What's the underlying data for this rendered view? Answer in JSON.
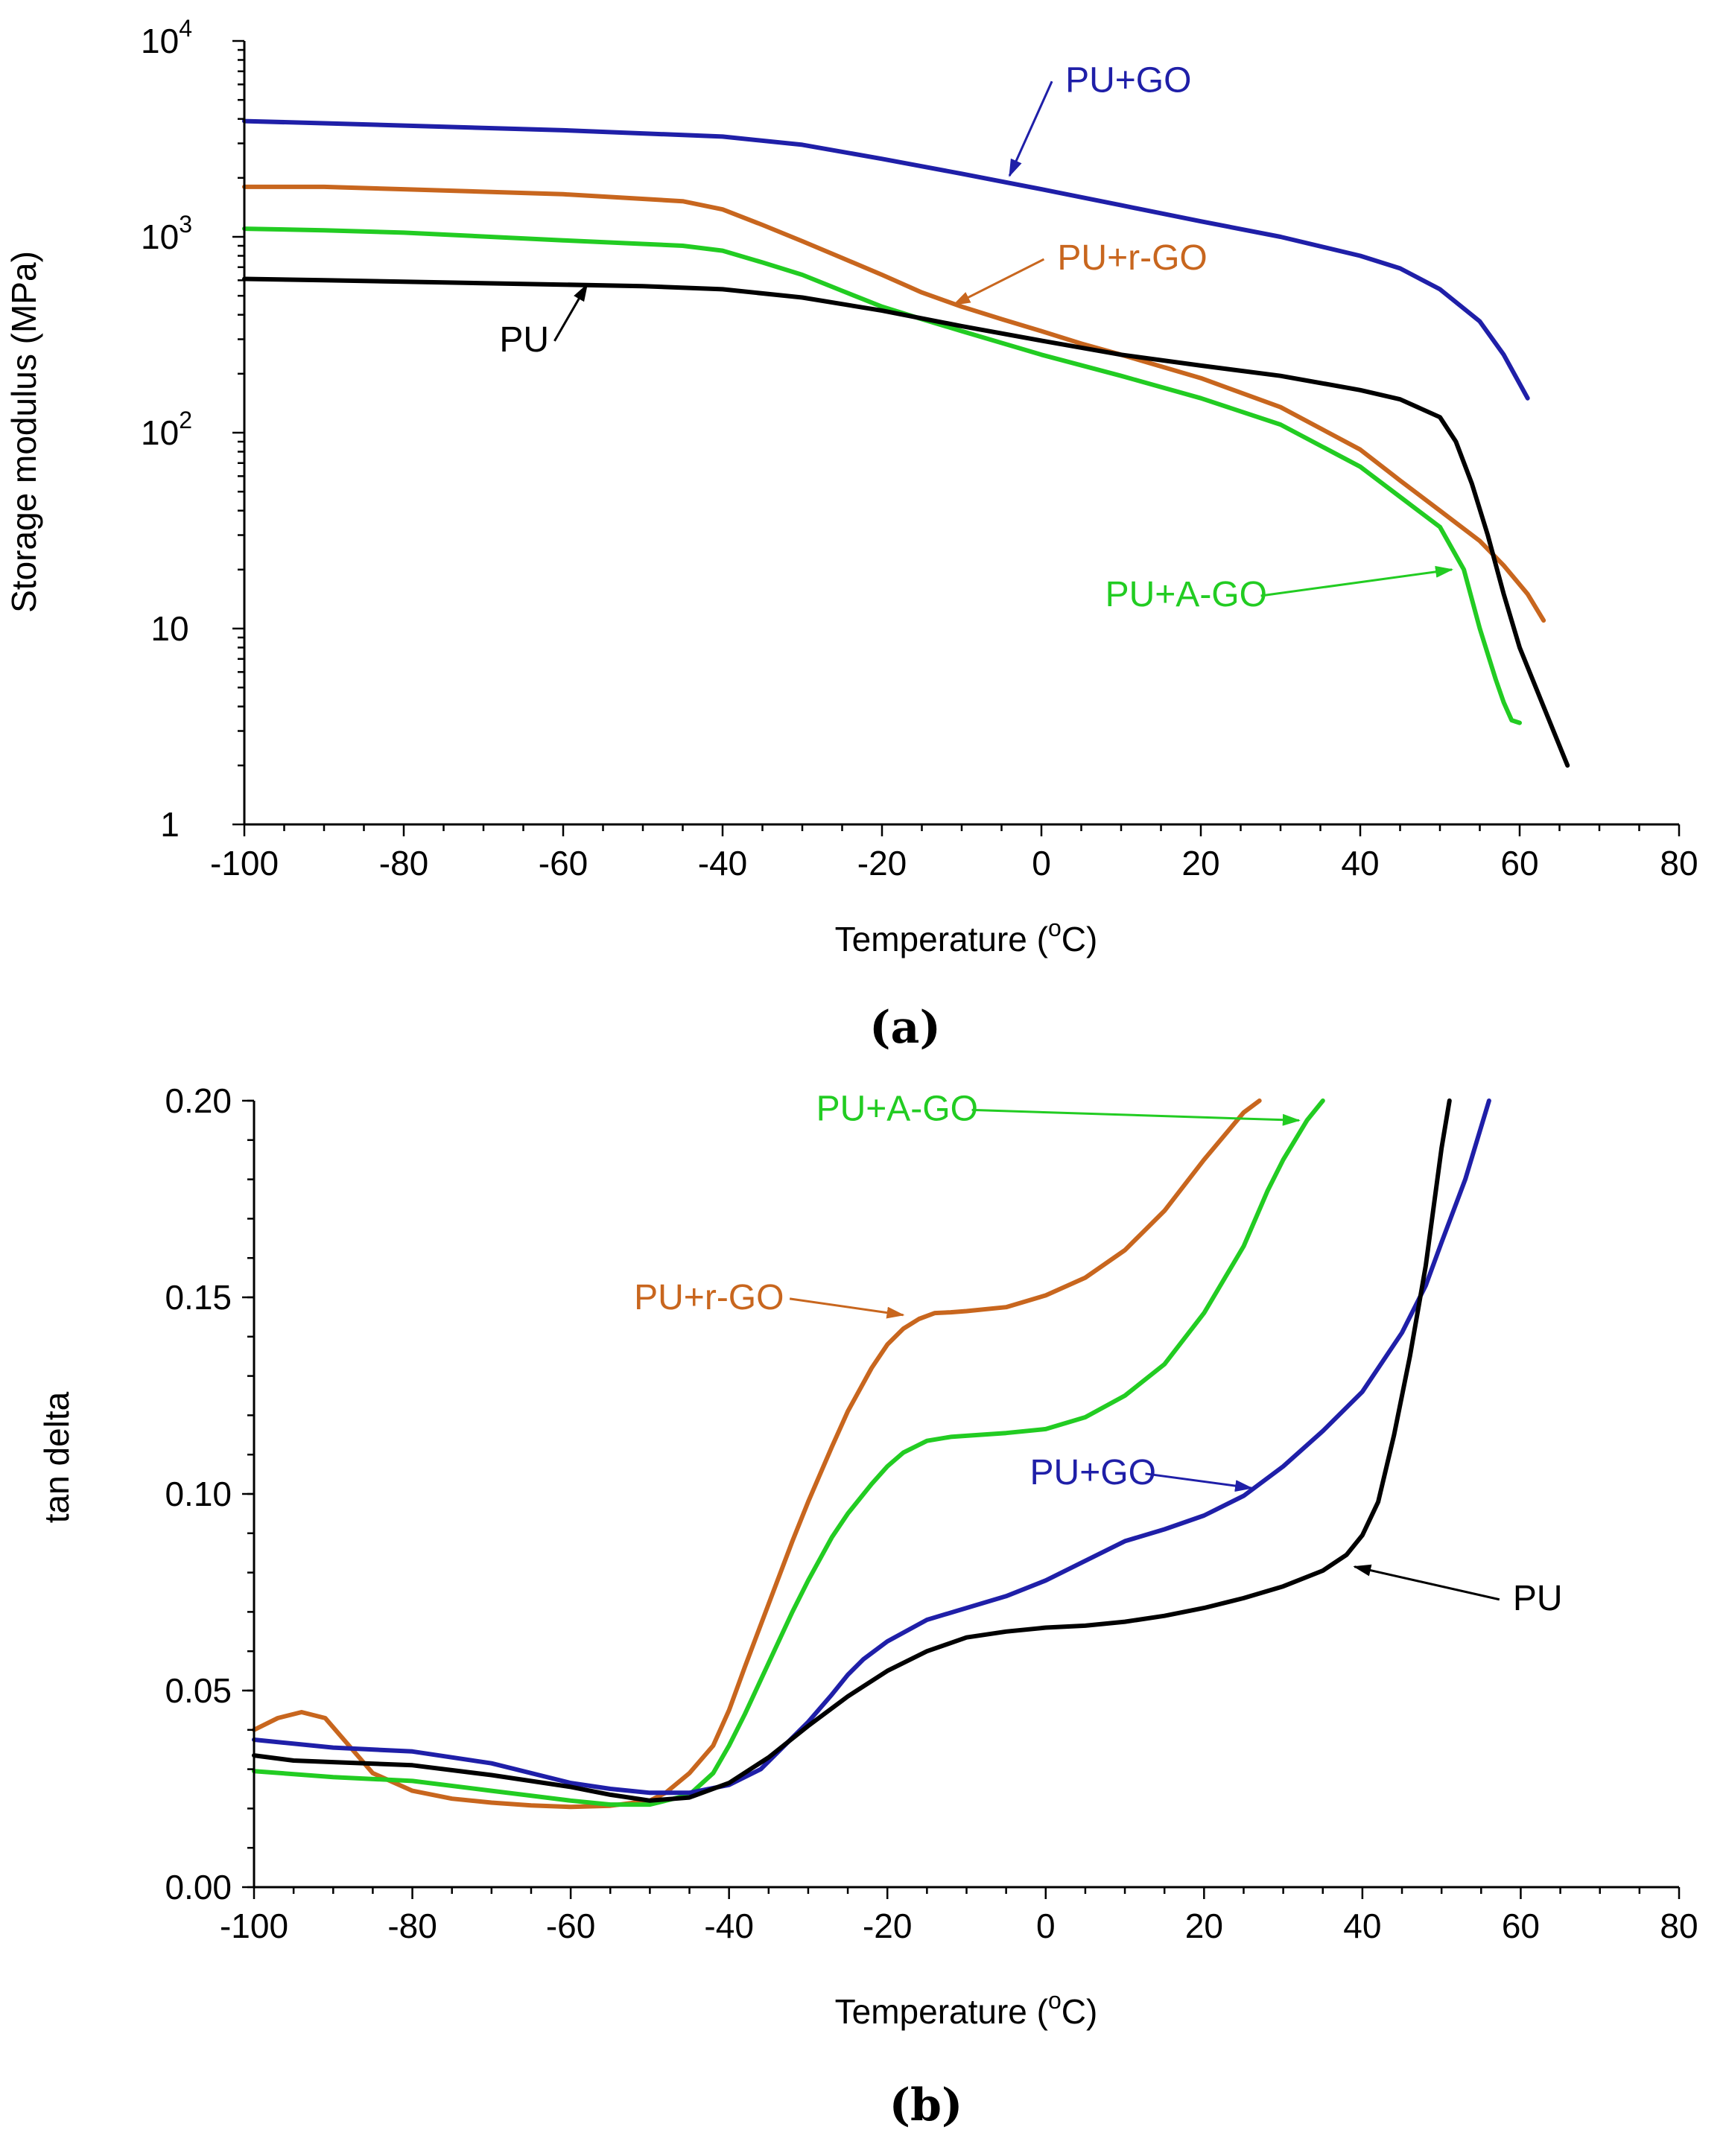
{
  "colors": {
    "PU": "#000000",
    "PU+GO": "#1f1fa8",
    "PU+r-GO": "#c8661e",
    "PU+A-GO": "#22cc22"
  },
  "chart_data": [
    {
      "type": "line",
      "panel_label": "(a)",
      "title": "",
      "xlabel": "Temperature (",
      "xlabel_sup": "o",
      "xlabel_suffix": "C)",
      "ylabel": "Storage modulus  (MPa)",
      "yscale": "log",
      "xlim": [
        -100,
        80
      ],
      "ylim": [
        1,
        10000
      ],
      "xticks": [
        -100,
        -80,
        -60,
        -40,
        -20,
        0,
        20,
        40,
        60,
        80
      ],
      "xtick_labels": [
        "-100",
        "-80",
        "-60",
        "-40",
        "-20",
        "0",
        "20",
        "40",
        "60",
        "80"
      ],
      "yticks": [
        1,
        10,
        100,
        1000,
        10000
      ],
      "ytick_labels": [
        {
          "base": "1",
          "exp": ""
        },
        {
          "base": "10",
          "exp": ""
        },
        {
          "base": "10",
          "exp": "2"
        },
        {
          "base": "10",
          "exp": "3"
        },
        {
          "base": "10",
          "exp": "4"
        }
      ],
      "series": [
        {
          "name": "PU+GO",
          "label": "PU+GO",
          "x": [
            -100,
            -90,
            -80,
            -60,
            -40,
            -30,
            -20,
            -10,
            0,
            10,
            20,
            30,
            40,
            45,
            50,
            55,
            58,
            61
          ],
          "y": [
            3900,
            3800,
            3700,
            3500,
            3250,
            2950,
            2500,
            2100,
            1750,
            1450,
            1200,
            1000,
            800,
            690,
            540,
            370,
            250,
            150
          ]
        },
        {
          "name": "PU+r-GO",
          "label": "PU+r-GO",
          "x": [
            -100,
            -90,
            -80,
            -60,
            -45,
            -40,
            -35,
            -30,
            -25,
            -20,
            -15,
            -10,
            -5,
            0,
            5,
            10,
            20,
            30,
            40,
            45,
            50,
            55,
            58,
            61,
            63
          ],
          "y": [
            1800,
            1800,
            1750,
            1650,
            1520,
            1380,
            1150,
            950,
            780,
            640,
            520,
            440,
            380,
            330,
            285,
            250,
            190,
            135,
            82,
            57,
            40,
            28,
            21,
            15,
            11
          ]
        },
        {
          "name": "PU+A-GO",
          "label": "PU+A-GO",
          "x": [
            -100,
            -90,
            -80,
            -60,
            -45,
            -40,
            -35,
            -30,
            -25,
            -20,
            -15,
            -10,
            0,
            10,
            20,
            30,
            40,
            45,
            50,
            53,
            55,
            57,
            58,
            59,
            60
          ],
          "y": [
            1100,
            1080,
            1050,
            960,
            900,
            850,
            740,
            640,
            530,
            440,
            380,
            330,
            250,
            195,
            150,
            110,
            67,
            47,
            33,
            20,
            10,
            5.5,
            4.2,
            3.4,
            3.3
          ]
        },
        {
          "name": "PU",
          "label": "PU",
          "x": [
            -100,
            -90,
            -80,
            -60,
            -50,
            -40,
            -30,
            -20,
            -10,
            0,
            10,
            20,
            30,
            40,
            45,
            50,
            52,
            54,
            56,
            58,
            60,
            63,
            66
          ],
          "y": [
            610,
            600,
            590,
            570,
            560,
            540,
            490,
            420,
            350,
            295,
            250,
            220,
            195,
            165,
            148,
            120,
            90,
            55,
            30,
            15,
            8,
            4,
            2
          ]
        }
      ],
      "annotations": [
        {
          "series": "PU+GO",
          "text": "PU+GO",
          "x": 3,
          "y": 5500,
          "arrow_to": [
            -4,
            2050
          ]
        },
        {
          "series": "PU+r-GO",
          "text": "PU+r-GO",
          "x": 2,
          "y": 680,
          "arrow_to": [
            -11,
            450
          ]
        },
        {
          "series": "PU",
          "text": "PU",
          "x": -68,
          "y": 260,
          "arrow_to": [
            -57,
            570
          ]
        },
        {
          "series": "PU+A-GO",
          "text": "PU+A-GO",
          "x": 8,
          "y": 13,
          "arrow_to": [
            51.5,
            20
          ]
        }
      ]
    },
    {
      "type": "line",
      "panel_label": "(b)",
      "title": "",
      "xlabel": "Temperature (",
      "xlabel_sup": "o",
      "xlabel_suffix": "C)",
      "ylabel": "tan delta",
      "yscale": "linear",
      "xlim": [
        -100,
        80
      ],
      "ylim": [
        0.0,
        0.2
      ],
      "xticks": [
        -100,
        -80,
        -60,
        -40,
        -20,
        0,
        20,
        40,
        60,
        80
      ],
      "xtick_labels": [
        "-100",
        "-80",
        "-60",
        "-40",
        "-20",
        "0",
        "20",
        "40",
        "60",
        "80"
      ],
      "yticks": [
        0.0,
        0.05,
        0.1,
        0.15,
        0.2
      ],
      "ytick_labels": [
        "0.00",
        "0.05",
        "0.10",
        "0.15",
        "0.20"
      ],
      "series": [
        {
          "name": "PU+r-GO",
          "label": "PU+r-GO",
          "x": [
            -100,
            -97,
            -94,
            -91,
            -88,
            -85,
            -80,
            -75,
            -70,
            -65,
            -60,
            -55,
            -50,
            -48,
            -45,
            -42,
            -40,
            -38,
            -35,
            -32,
            -30,
            -27,
            -25,
            -22,
            -20,
            -18,
            -16,
            -14,
            -12,
            -10,
            -5,
            0,
            5,
            10,
            15,
            20,
            25,
            27
          ],
          "y": [
            0.04,
            0.043,
            0.0445,
            0.043,
            0.036,
            0.029,
            0.0245,
            0.0225,
            0.0215,
            0.0208,
            0.0204,
            0.0207,
            0.022,
            0.024,
            0.029,
            0.036,
            0.045,
            0.056,
            0.072,
            0.088,
            0.098,
            0.112,
            0.121,
            0.132,
            0.138,
            0.142,
            0.1445,
            0.146,
            0.1462,
            0.1465,
            0.1475,
            0.1505,
            0.155,
            0.162,
            0.172,
            0.185,
            0.197,
            0.2
          ]
        },
        {
          "name": "PU+A-GO",
          "label": "PU+A-GO",
          "x": [
            -100,
            -90,
            -80,
            -70,
            -60,
            -55,
            -50,
            -45,
            -42,
            -40,
            -38,
            -35,
            -32,
            -30,
            -27,
            -25,
            -22,
            -20,
            -18,
            -15,
            -12,
            -10,
            -5,
            0,
            5,
            10,
            15,
            20,
            25,
            28,
            30,
            33,
            35
          ],
          "y": [
            0.0295,
            0.028,
            0.027,
            0.0245,
            0.022,
            0.021,
            0.021,
            0.0235,
            0.029,
            0.036,
            0.044,
            0.057,
            0.07,
            0.078,
            0.089,
            0.095,
            0.1025,
            0.107,
            0.1105,
            0.1135,
            0.1145,
            0.1148,
            0.1155,
            0.1165,
            0.1195,
            0.125,
            0.133,
            0.146,
            0.163,
            0.177,
            0.185,
            0.195,
            0.2
          ]
        },
        {
          "name": "PU+GO",
          "label": "PU+GO",
          "x": [
            -100,
            -90,
            -80,
            -70,
            -60,
            -55,
            -50,
            -45,
            -40,
            -36,
            -33,
            -30,
            -27,
            -25,
            -23,
            -20,
            -15,
            -10,
            -5,
            0,
            5,
            10,
            15,
            20,
            25,
            30,
            35,
            40,
            45,
            48,
            50,
            53,
            56
          ],
          "y": [
            0.0375,
            0.0355,
            0.0345,
            0.0315,
            0.0265,
            0.025,
            0.024,
            0.024,
            0.026,
            0.03,
            0.036,
            0.042,
            0.049,
            0.054,
            0.058,
            0.0625,
            0.068,
            0.071,
            0.074,
            0.078,
            0.083,
            0.088,
            0.091,
            0.0945,
            0.0995,
            0.107,
            0.116,
            0.126,
            0.141,
            0.153,
            0.164,
            0.18,
            0.2
          ]
        },
        {
          "name": "PU",
          "label": "PU",
          "x": [
            -100,
            -95,
            -90,
            -80,
            -70,
            -60,
            -55,
            -50,
            -45,
            -40,
            -35,
            -30,
            -25,
            -20,
            -15,
            -10,
            -5,
            0,
            5,
            10,
            15,
            20,
            25,
            30,
            35,
            38,
            40,
            42,
            44,
            46,
            48,
            50,
            51
          ],
          "y": [
            0.0335,
            0.0322,
            0.0318,
            0.031,
            0.0285,
            0.0255,
            0.0235,
            0.022,
            0.0228,
            0.0265,
            0.033,
            0.041,
            0.0485,
            0.055,
            0.06,
            0.0635,
            0.065,
            0.066,
            0.0665,
            0.0675,
            0.069,
            0.071,
            0.0735,
            0.0765,
            0.0805,
            0.0845,
            0.0895,
            0.098,
            0.115,
            0.135,
            0.158,
            0.188,
            0.2
          ]
        }
      ],
      "annotations": [
        {
          "series": "PU+A-GO",
          "text": "PU+A-GO",
          "x": -29,
          "y": 0.195,
          "arrow_to": [
            32,
            0.195
          ]
        },
        {
          "series": "PU+r-GO",
          "text": "PU+r-GO",
          "x": -52,
          "y": 0.147,
          "arrow_to": [
            -18,
            0.1455
          ]
        },
        {
          "series": "PU+GO",
          "text": "PU+GO",
          "x": -2,
          "y": 0.1025,
          "arrow_to": [
            26,
            0.1015
          ]
        },
        {
          "series": "PU",
          "text": "PU",
          "x": 59,
          "y": 0.0705,
          "arrow_to": [
            39,
            0.0815
          ]
        }
      ]
    }
  ]
}
